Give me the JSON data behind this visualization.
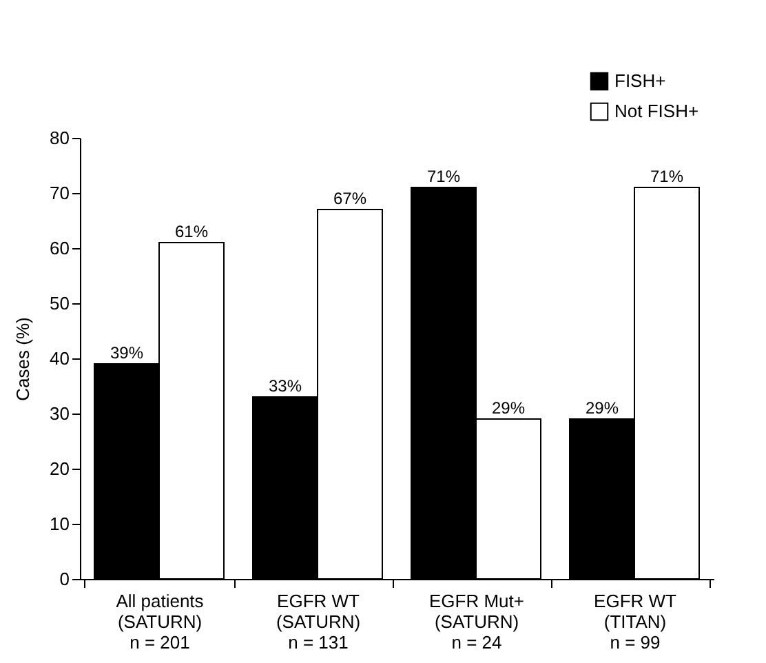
{
  "chart_data": {
    "type": "bar",
    "ylabel": "Cases (%)",
    "categories": [
      "All patients\n(SATURN)\nn = 201",
      "EGFR WT\n(SATURN)\nn = 131",
      "EGFR Mut+\n(SATURN)\nn = 24",
      "EGFR WT\n(TITAN)\nn = 99"
    ],
    "series": [
      {
        "name": "FISH+",
        "color": "#000000",
        "values": [
          39,
          33,
          71,
          29
        ],
        "value_labels": [
          "39%",
          "33%",
          "71%",
          "29%"
        ]
      },
      {
        "name": "Not FISH+",
        "color": "#ffffff",
        "values": [
          61,
          67,
          29,
          71
        ],
        "value_labels": [
          "61%",
          "67%",
          "29%",
          "71%"
        ]
      }
    ],
    "ylim": [
      0,
      80
    ],
    "yticks": [
      0,
      10,
      20,
      30,
      40,
      50,
      60,
      70,
      80
    ],
    "grid": false,
    "legend": "top right"
  }
}
